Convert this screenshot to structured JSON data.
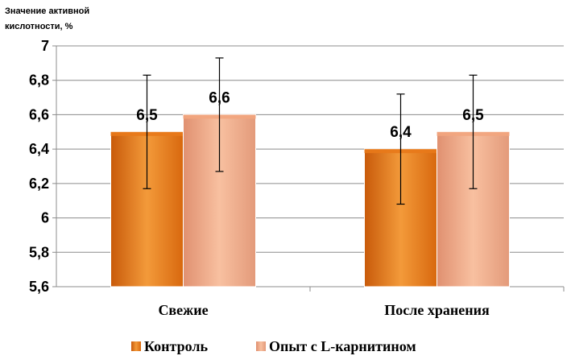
{
  "chart_data": {
    "type": "bar",
    "ylabel_lines": [
      "Значение активной",
      "кислотности, %"
    ],
    "categories": [
      "Свежие",
      "После хранения"
    ],
    "series": [
      {
        "name": "Контроль",
        "values": [
          6.5,
          6.4
        ],
        "errors": [
          0.33,
          0.32
        ],
        "labels": [
          "6,5",
          "6,4"
        ],
        "color": "#E8791A"
      },
      {
        "name": "Опыт с L-карнитином",
        "values": [
          6.6,
          6.5
        ],
        "errors": [
          0.33,
          0.33
        ],
        "labels": [
          "6,6",
          "6,5"
        ],
        "color": "#F2A57E"
      }
    ],
    "yticks": [
      5.6,
      5.8,
      6,
      6.2,
      6.4,
      6.6,
      6.8,
      7
    ],
    "ytick_labels": [
      "5,6",
      "5,8",
      "6",
      "6,2",
      "6,4",
      "6,6",
      "6,8",
      "7"
    ],
    "ylim": [
      5.6,
      7
    ],
    "grid": true,
    "legend_position": "bottom"
  }
}
